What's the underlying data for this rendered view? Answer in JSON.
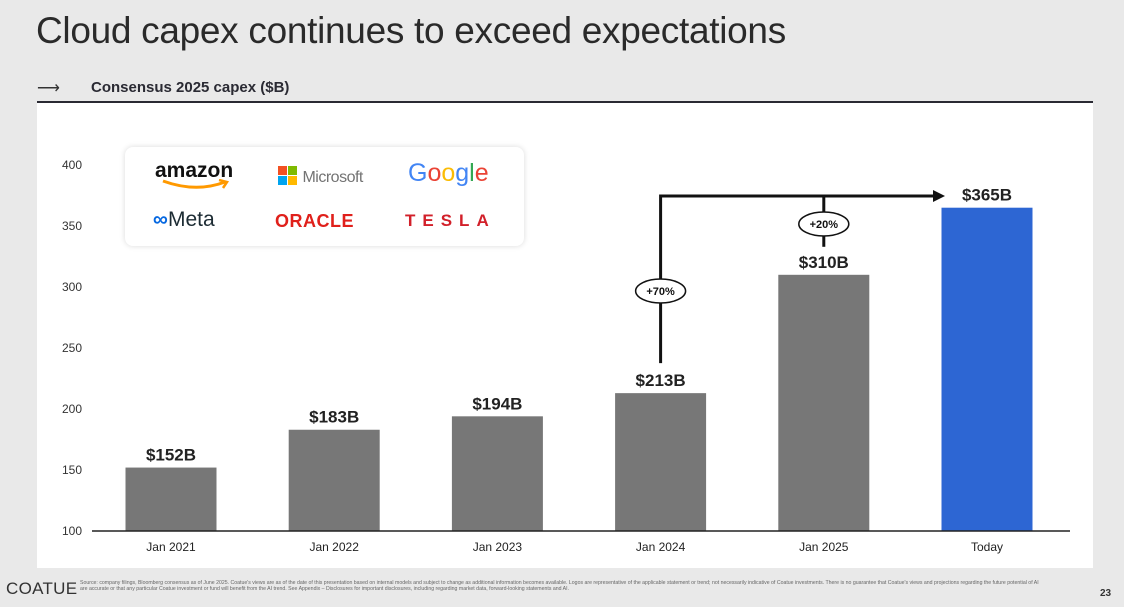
{
  "header": {
    "title": "Cloud capex continues to exceed expectations",
    "subtitle_arrow": "⟶",
    "subtitle": "Consensus 2025 capex ($B)"
  },
  "logos": [
    "amazon",
    "Microsoft",
    "Google",
    "Meta",
    "ORACLE",
    "TESLA"
  ],
  "chart_data": {
    "type": "bar",
    "title": "Consensus 2025 capex ($B)",
    "xlabel": "",
    "ylabel": "",
    "categories": [
      "Jan 2021",
      "Jan 2022",
      "Jan 2023",
      "Jan 2024",
      "Jan 2025",
      "Today"
    ],
    "values": [
      152,
      183,
      194,
      213,
      310,
      365
    ],
    "data_labels": [
      "$152B",
      "$183B",
      "$194B",
      "$213B",
      "$310B",
      "$365B"
    ],
    "colors": [
      "#777777",
      "#777777",
      "#777777",
      "#777777",
      "#777777",
      "#2d66d3"
    ],
    "ylim": [
      100,
      400
    ],
    "yticks": [
      100,
      150,
      200,
      250,
      300,
      350,
      400
    ],
    "grid": false,
    "annotations": [
      {
        "label": "+70%",
        "from": "Jan 2024",
        "to": "Today"
      },
      {
        "label": "+20%",
        "from": "Jan 2025",
        "to": "Today"
      }
    ]
  },
  "footer": {
    "brand": "COATUE",
    "note": "Source: company filings, Bloomberg consensus as of June 2025. Coatue's views are as of the date of this presentation based on internal models and subject to change as additional information becomes available. Logos are representative of the applicable statement or trend; not necessarily indicative of Coatue investments. There is no guarantee that Coatue's views and projections regarding the future potential of AI are accurate or that any particular Coatue investment or fund will benefit from the AI trend. See Appendix – Disclosures for important disclosures, including regarding market data, forward-looking statements and AI.",
    "page": "23"
  }
}
